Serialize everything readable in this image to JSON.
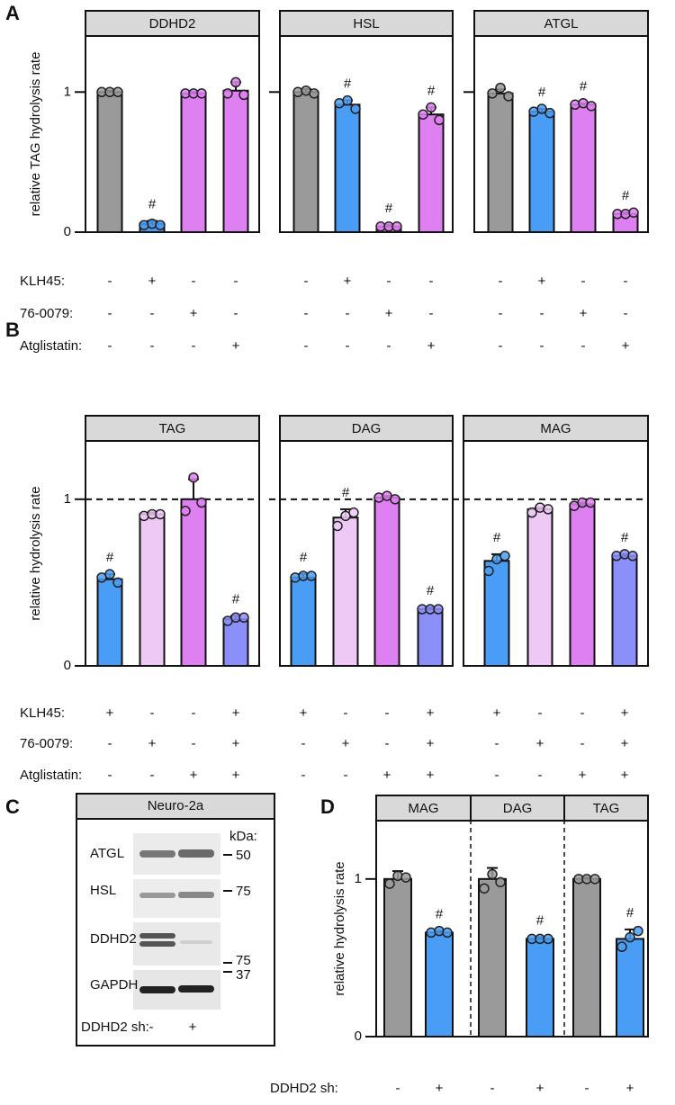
{
  "panel_labels": [
    "A",
    "B",
    "C",
    "D"
  ],
  "chart_data": [
    {
      "type": "bar",
      "title": "DDHD2",
      "y_label": "relative TAG hydrolysis rate",
      "ylim": [
        0,
        1.4
      ],
      "yticks": [
        0,
        1
      ],
      "show_tick_labels": true,
      "values": [
        1.0,
        0.06,
        0.99,
        1.01
      ],
      "errors": [
        0.01,
        0.02,
        0.01,
        0.06
      ],
      "points": [
        [
          1.0,
          1.0,
          1.0
        ],
        [
          0.05,
          0.06,
          0.05
        ],
        [
          0.99,
          0.99,
          0.99
        ],
        [
          0.99,
          1.07,
          0.98
        ]
      ],
      "colors": [
        "#9a9a9a",
        "#4a9df5",
        "#df80f2",
        "#df80f2"
      ],
      "annotations": [
        null,
        "#",
        null,
        null
      ],
      "row_labels": [
        "KLH45:",
        "76-0079:",
        "Atglistatin:"
      ],
      "signs": [
        [
          "-",
          "+",
          "-",
          "-"
        ],
        [
          "-",
          "-",
          "+",
          "-"
        ],
        [
          "-",
          "-",
          "-",
          "+"
        ]
      ]
    },
    {
      "type": "bar",
      "title": "HSL",
      "ylim": [
        0,
        1.4
      ],
      "yticks": [
        1
      ],
      "show_tick_labels": false,
      "values": [
        1.0,
        0.91,
        0.04,
        0.84
      ],
      "errors": [
        0.02,
        0.03,
        0.01,
        0.05
      ],
      "points": [
        [
          1.0,
          1.01,
          0.99
        ],
        [
          0.92,
          0.94,
          0.88
        ],
        [
          0.04,
          0.04,
          0.04
        ],
        [
          0.84,
          0.89,
          0.8
        ]
      ],
      "colors": [
        "#9a9a9a",
        "#4a9df5",
        "#df80f2",
        "#df80f2"
      ],
      "annotations": [
        null,
        "#",
        "#",
        "#"
      ],
      "signs": [
        [
          "-",
          "+",
          "-",
          "-"
        ],
        [
          "-",
          "-",
          "+",
          "-"
        ],
        [
          "-",
          "-",
          "-",
          "+"
        ]
      ]
    },
    {
      "type": "bar",
      "title": "ATGL",
      "ylim": [
        0,
        1.4
      ],
      "yticks": [
        1
      ],
      "show_tick_labels": false,
      "values": [
        0.99,
        0.86,
        0.91,
        0.13
      ],
      "errors": [
        0.03,
        0.02,
        0.01,
        0.01
      ],
      "points": [
        [
          0.99,
          1.03,
          0.97
        ],
        [
          0.86,
          0.88,
          0.85
        ],
        [
          0.91,
          0.92,
          0.9
        ],
        [
          0.13,
          0.13,
          0.14
        ]
      ],
      "colors": [
        "#9a9a9a",
        "#4a9df5",
        "#df80f2",
        "#df80f2"
      ],
      "annotations": [
        null,
        "#",
        "#",
        "#"
      ],
      "signs": [
        [
          "-",
          "+",
          "-",
          "-"
        ],
        [
          "-",
          "-",
          "+",
          "-"
        ],
        [
          "-",
          "-",
          "-",
          "+"
        ]
      ]
    },
    {
      "type": "bar",
      "title": "TAG",
      "y_label": "relative hydrolysis rate",
      "ylim": [
        0,
        1.35
      ],
      "yticks": [
        0,
        1
      ],
      "show_tick_labels": true,
      "reference_line": 1,
      "values": [
        0.52,
        0.91,
        1.0,
        0.28
      ],
      "errors": [
        0.03,
        0.01,
        0.12,
        0.02
      ],
      "points": [
        [
          0.53,
          0.55,
          0.5
        ],
        [
          0.9,
          0.91,
          0.91
        ],
        [
          0.93,
          1.13,
          0.98
        ],
        [
          0.27,
          0.29,
          0.29
        ]
      ],
      "colors": [
        "#4a9df5",
        "#efc9f6",
        "#df80f2",
        "#8b8ff9"
      ],
      "annotations": [
        "#",
        null,
        null,
        "#"
      ],
      "row_labels": [
        "KLH45:",
        "76-0079:",
        "Atglistatin:"
      ],
      "signs": [
        [
          "+",
          "-",
          "-",
          "+"
        ],
        [
          "-",
          "+",
          "-",
          "+"
        ],
        [
          "-",
          "-",
          "+",
          "+"
        ]
      ]
    },
    {
      "type": "bar",
      "title": "DAG",
      "ylim": [
        0,
        1.35
      ],
      "reference_line": 1,
      "values": [
        0.53,
        0.89,
        1.01,
        0.34
      ],
      "errors": [
        0.02,
        0.05,
        0.01,
        0.01
      ],
      "points": [
        [
          0.53,
          0.54,
          0.54
        ],
        [
          0.84,
          0.9,
          0.92
        ],
        [
          1.01,
          1.02,
          1.0
        ],
        [
          0.34,
          0.34,
          0.34
        ]
      ],
      "colors": [
        "#4a9df5",
        "#efc9f6",
        "#df80f2",
        "#8b8ff9"
      ],
      "annotations": [
        "#",
        "#",
        null,
        "#"
      ],
      "signs": [
        [
          "+",
          "-",
          "-",
          "+"
        ],
        [
          "-",
          "+",
          "-",
          "+"
        ],
        [
          "-",
          "-",
          "+",
          "+"
        ]
      ]
    },
    {
      "type": "bar",
      "title": "MAG",
      "ylim": [
        0,
        1.35
      ],
      "reference_line": 1,
      "values": [
        0.63,
        0.94,
        0.97,
        0.66
      ],
      "errors": [
        0.04,
        0.01,
        0.01,
        0.01
      ],
      "points": [
        [
          0.57,
          0.64,
          0.66
        ],
        [
          0.92,
          0.95,
          0.94
        ],
        [
          0.96,
          0.98,
          0.98
        ],
        [
          0.66,
          0.67,
          0.66
        ]
      ],
      "colors": [
        "#4a9df5",
        "#efc9f6",
        "#df80f2",
        "#8b8ff9"
      ],
      "annotations": [
        "#",
        null,
        null,
        "#"
      ],
      "signs": [
        [
          "+",
          "-",
          "-",
          "+"
        ],
        [
          "-",
          "+",
          "-",
          "+"
        ],
        [
          "-",
          "-",
          "+",
          "+"
        ]
      ]
    },
    {
      "type": "bar",
      "titles": [
        "MAG",
        "DAG",
        "TAG"
      ],
      "y_label": "relative hydrolysis rate",
      "ylim": [
        0,
        1.37
      ],
      "yticks": [
        0,
        1
      ],
      "show_tick_labels": true,
      "values": [
        1.0,
        0.66,
        1.0,
        0.62,
        1.0,
        0.62
      ],
      "errors": [
        0.05,
        0.01,
        0.07,
        0.01,
        0.01,
        0.06
      ],
      "points": [
        [
          0.97,
          1.02,
          1.01
        ],
        [
          0.66,
          0.67,
          0.66
        ],
        [
          0.94,
          1.03,
          0.98
        ],
        [
          0.62,
          0.62,
          0.62
        ],
        [
          1.0,
          1.0,
          1.0
        ],
        [
          0.57,
          0.63,
          0.67
        ]
      ],
      "colors": [
        "#9a9a9a",
        "#4a9df5",
        "#9a9a9a",
        "#4a9df5",
        "#9a9a9a",
        "#4a9df5"
      ],
      "annotations": [
        null,
        "#",
        null,
        "#",
        null,
        "#"
      ],
      "row_labels": [
        "DDHD2 sh:"
      ],
      "signs": [
        [
          "-",
          "+",
          "-",
          "+",
          "-",
          "+"
        ]
      ]
    }
  ],
  "blot": {
    "header": "Neuro-2a",
    "bands": [
      "ATGL",
      "HSL",
      "DDHD2",
      "GAPDH"
    ],
    "kda_title": "kDa:",
    "markers": [
      "50",
      "75",
      "75",
      "37"
    ],
    "lane_label": "DDHD2 sh:",
    "lanes": [
      "-",
      "+"
    ]
  }
}
